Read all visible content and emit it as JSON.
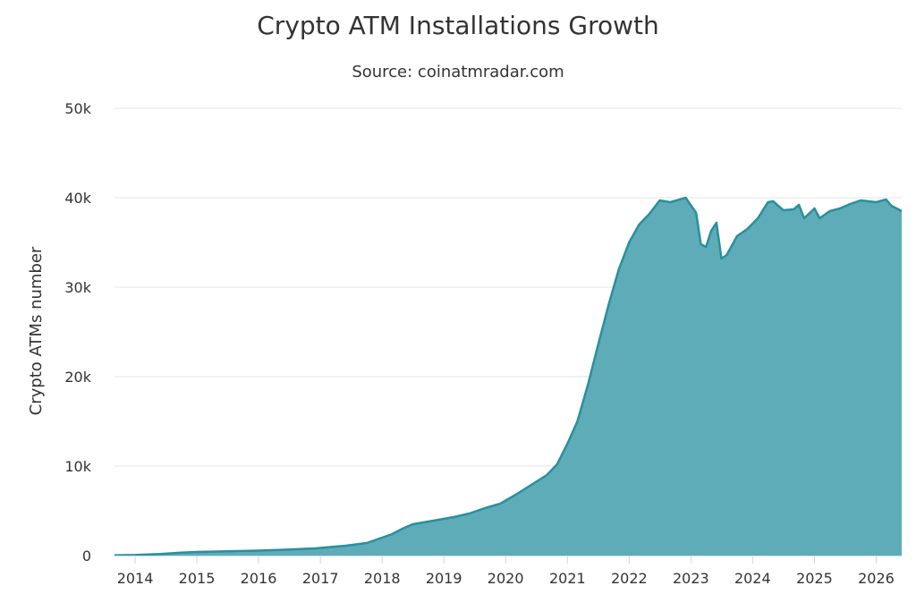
{
  "chart_data": {
    "type": "area",
    "title": "Crypto ATM Installations Growth",
    "subtitle": "Source: coinatmradar.com",
    "xlabel": "",
    "ylabel": "Crypto ATMs number",
    "ylim": [
      0,
      50000
    ],
    "xlim": [
      "2013-09-01",
      "2026-06-01"
    ],
    "y_ticks": [
      0,
      10000,
      20000,
      30000,
      40000,
      50000
    ],
    "y_tick_labels": [
      "0",
      "10k",
      "20k",
      "30k",
      "40k",
      "50k"
    ],
    "x_ticks": [
      "2014",
      "2015",
      "2016",
      "2017",
      "2018",
      "2019",
      "2020",
      "2021",
      "2022",
      "2023",
      "2024",
      "2025",
      "2026"
    ],
    "grid": true,
    "legend": false,
    "color": "#5eacb7",
    "line_color": "#2a8f9e",
    "series": [
      {
        "points": [
          [
            "2013-09-01",
            30
          ],
          [
            "2014-01-01",
            60
          ],
          [
            "2014-06-01",
            180
          ],
          [
            "2014-10-01",
            330
          ],
          [
            "2015-01-01",
            400
          ],
          [
            "2015-06-01",
            460
          ],
          [
            "2016-01-01",
            550
          ],
          [
            "2016-06-01",
            650
          ],
          [
            "2016-12-01",
            800
          ],
          [
            "2017-06-01",
            1100
          ],
          [
            "2017-10-01",
            1400
          ],
          [
            "2018-01-01",
            2000
          ],
          [
            "2018-03-01",
            2400
          ],
          [
            "2018-05-01",
            3000
          ],
          [
            "2018-07-01",
            3500
          ],
          [
            "2018-09-01",
            3700
          ],
          [
            "2018-12-01",
            4000
          ],
          [
            "2019-03-01",
            4300
          ],
          [
            "2019-06-01",
            4700
          ],
          [
            "2019-09-01",
            5300
          ],
          [
            "2019-12-01",
            5800
          ],
          [
            "2020-03-01",
            6800
          ],
          [
            "2020-06-01",
            7900
          ],
          [
            "2020-09-01",
            9000
          ],
          [
            "2020-11-01",
            10200
          ],
          [
            "2021-01-01",
            12500
          ],
          [
            "2021-03-01",
            15000
          ],
          [
            "2021-05-01",
            19000
          ],
          [
            "2021-07-01",
            23500
          ],
          [
            "2021-09-01",
            28000
          ],
          [
            "2021-11-01",
            32000
          ],
          [
            "2022-01-01",
            35000
          ],
          [
            "2022-03-01",
            37000
          ],
          [
            "2022-05-01",
            38200
          ],
          [
            "2022-07-01",
            39700
          ],
          [
            "2022-09-01",
            39500
          ],
          [
            "2022-12-01",
            40000
          ],
          [
            "2023-02-01",
            38300
          ],
          [
            "2023-03-01",
            34800
          ],
          [
            "2023-04-01",
            34500
          ],
          [
            "2023-05-01",
            36300
          ],
          [
            "2023-06-01",
            37200
          ],
          [
            "2023-07-01",
            33200
          ],
          [
            "2023-08-01",
            33600
          ],
          [
            "2023-10-01",
            35700
          ],
          [
            "2023-12-01",
            36500
          ],
          [
            "2024-02-01",
            37700
          ],
          [
            "2024-04-01",
            39500
          ],
          [
            "2024-05-01",
            39600
          ],
          [
            "2024-07-01",
            38600
          ],
          [
            "2024-09-01",
            38700
          ],
          [
            "2024-10-01",
            39200
          ],
          [
            "2024-11-01",
            37700
          ],
          [
            "2025-01-01",
            38800
          ],
          [
            "2025-02-01",
            37700
          ],
          [
            "2025-04-01",
            38500
          ],
          [
            "2025-06-01",
            38800
          ],
          [
            "2025-08-01",
            39300
          ],
          [
            "2025-10-01",
            39700
          ],
          [
            "2026-01-01",
            39500
          ],
          [
            "2026-03-01",
            39800
          ],
          [
            "2026-04-01",
            39100
          ],
          [
            "2026-06-01",
            38500
          ]
        ]
      }
    ]
  }
}
